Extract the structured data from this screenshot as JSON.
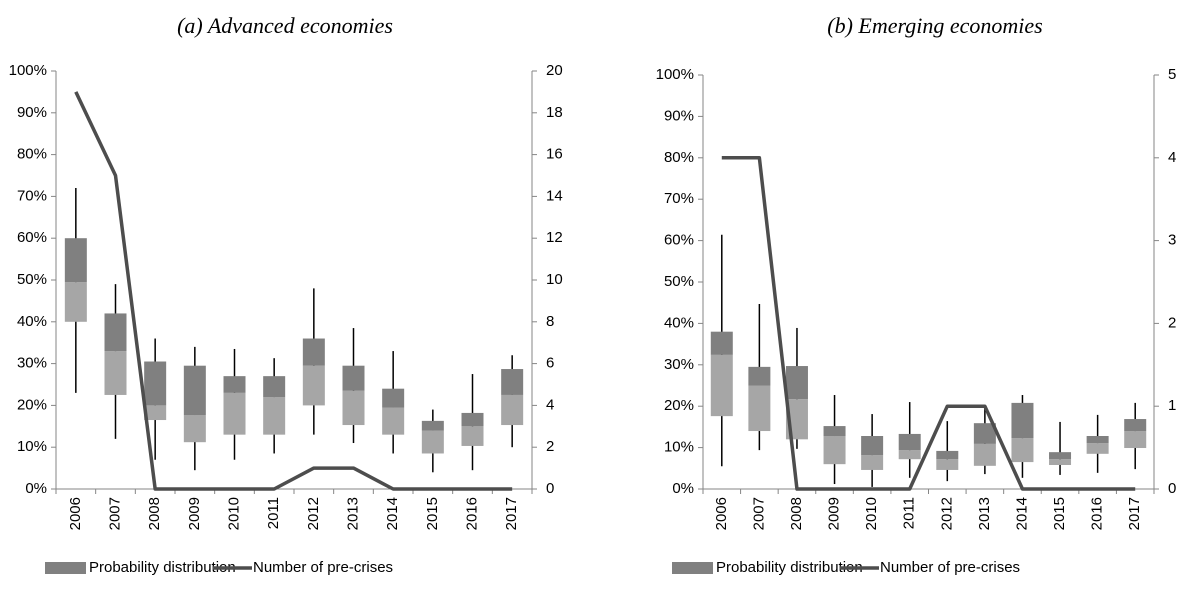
{
  "chart_data": [
    {
      "type": "combo",
      "title": "(a) Advanced economies",
      "categories": [
        "2006",
        "2007",
        "2008",
        "2009",
        "2010",
        "2011",
        "2012",
        "2013",
        "2014",
        "2015",
        "2016",
        "2017"
      ],
      "series": [
        {
          "type": "box",
          "name": "Probability distribution",
          "color": "#808080",
          "lower_color": "#a6a6a6",
          "whisker_low": [
            23,
            12,
            7,
            4.5,
            7,
            8.5,
            13,
            11,
            8.5,
            4,
            4.5,
            10
          ],
          "q1": [
            40,
            22.5,
            16.5,
            11.2,
            13,
            13,
            20,
            15.3,
            13,
            8.5,
            10.3,
            15.3
          ],
          "median": [
            49.5,
            33,
            20,
            17.7,
            23,
            22,
            29.5,
            23.5,
            19.5,
            14,
            15,
            22.5
          ],
          "q3": [
            60,
            42,
            30.5,
            29.5,
            27,
            27,
            36,
            29.5,
            24,
            16.3,
            18.2,
            28.7
          ],
          "whisker_high": [
            72,
            49,
            36,
            34,
            33.5,
            31.3,
            48,
            38.5,
            33,
            19,
            27.5,
            32
          ]
        },
        {
          "type": "line",
          "name": "Number of pre-crises",
          "color": "#4d4d4d",
          "axis": "y2",
          "values": [
            19,
            15,
            0,
            0,
            0,
            0,
            1,
            1,
            0,
            0,
            0,
            0
          ]
        }
      ],
      "ylim": [
        0,
        100
      ],
      "yticks": [
        {
          "value": 0,
          "label": "0%"
        },
        {
          "value": 10,
          "label": "10%"
        },
        {
          "value": 20,
          "label": "20%"
        },
        {
          "value": 30,
          "label": "30%"
        },
        {
          "value": 40,
          "label": "40%"
        },
        {
          "value": 50,
          "label": "50%"
        },
        {
          "value": 60,
          "label": "60%"
        },
        {
          "value": 70,
          "label": "70%"
        },
        {
          "value": 80,
          "label": "80%"
        },
        {
          "value": 90,
          "label": "90%"
        },
        {
          "value": 100,
          "label": "100%"
        }
      ],
      "y2lim": [
        0,
        20
      ],
      "y2ticks": [
        0,
        2,
        4,
        6,
        8,
        10,
        12,
        14,
        16,
        18,
        20
      ],
      "legend": "bottom"
    },
    {
      "type": "combo",
      "title": "(b) Emerging economies",
      "categories": [
        "2006",
        "2007",
        "2008",
        "2009",
        "2010",
        "2011",
        "2012",
        "2013",
        "2014",
        "2015",
        "2016",
        "2017"
      ],
      "series": [
        {
          "type": "box",
          "name": "Probability distribution",
          "color": "#808080",
          "lower_color": "#a6a6a6",
          "whisker_low": [
            5.5,
            9.4,
            9.7,
            1.2,
            0.5,
            2.7,
            1.9,
            3.6,
            2.7,
            3.4,
            3.9,
            4.8
          ],
          "q1": [
            17.6,
            14,
            12,
            6,
            4.6,
            7.2,
            4.6,
            5.6,
            6.5,
            5.8,
            8.5,
            9.9
          ],
          "median": [
            32.4,
            25,
            21.7,
            12.8,
            8.2,
            9.4,
            7.2,
            10.9,
            12.3,
            7.2,
            11.1,
            14
          ],
          "q3": [
            38,
            29.5,
            29.7,
            15.2,
            12.8,
            13.3,
            9.2,
            15.9,
            20.8,
            8.9,
            12.8,
            16.9
          ],
          "whisker_high": [
            61.4,
            44.7,
            38.9,
            22.7,
            18.1,
            21,
            16.4,
            19.8,
            22.7,
            16.2,
            17.9,
            20.8
          ]
        },
        {
          "type": "line",
          "name": "Number of pre-crises",
          "color": "#4d4d4d",
          "axis": "y2",
          "values": [
            4,
            4,
            0,
            0,
            0,
            0,
            1,
            1,
            0,
            0,
            0,
            0
          ]
        }
      ],
      "ylim": [
        0,
        100
      ],
      "yticks": [
        {
          "value": 0,
          "label": "0%"
        },
        {
          "value": 10,
          "label": "10%"
        },
        {
          "value": 20,
          "label": "20%"
        },
        {
          "value": 30,
          "label": "30%"
        },
        {
          "value": 40,
          "label": "40%"
        },
        {
          "value": 50,
          "label": "50%"
        },
        {
          "value": 60,
          "label": "60%"
        },
        {
          "value": 70,
          "label": "70%"
        },
        {
          "value": 80,
          "label": "80%"
        },
        {
          "value": 90,
          "label": "90%"
        },
        {
          "value": 100,
          "label": "100%"
        }
      ],
      "y2lim": [
        0,
        5
      ],
      "y2ticks": [
        0,
        1,
        2,
        3,
        4,
        5
      ],
      "legend": "bottom"
    }
  ]
}
